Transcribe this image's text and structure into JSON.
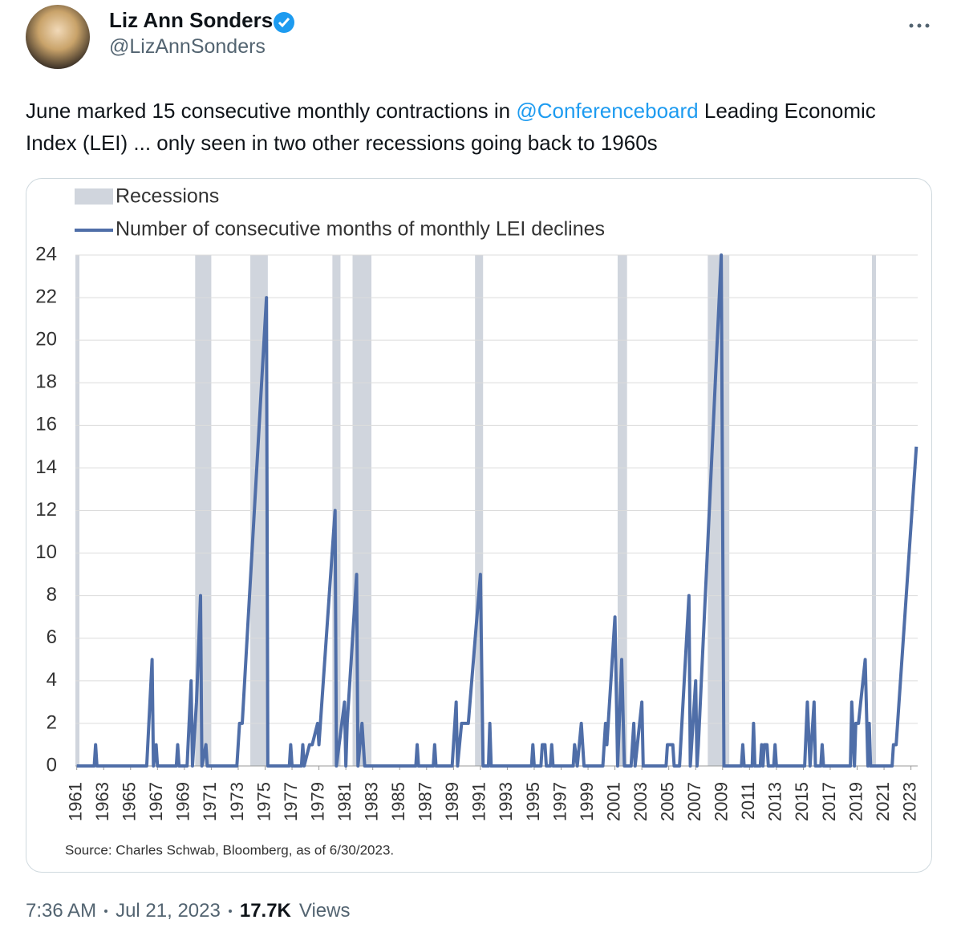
{
  "tweet": {
    "name": "Liz Ann Sonders",
    "handle": "@LizAnnSonders",
    "text": [
      "June marked 15 consecutive monthly contractions in ",
      "@Conferenceboard",
      " Leading Economic Index (LEI) ... only seen in two other recessions going back to 1960s"
    ],
    "time": "7:36 AM",
    "date": "Jul 21, 2023",
    "views_count": "17.7K",
    "views_label": "Views"
  },
  "chart_data": {
    "type": "line",
    "source": "Source: Charles Schwab, Bloomberg, as of 6/30/2023.",
    "xlim": [
      1960.9,
      2023.5
    ],
    "ylim": [
      0,
      24
    ],
    "yticks": [
      0,
      2,
      4,
      6,
      8,
      10,
      12,
      14,
      16,
      18,
      20,
      22,
      24
    ],
    "xticks": [
      1961,
      1963,
      1965,
      1967,
      1969,
      1971,
      1973,
      1975,
      1977,
      1979,
      1981,
      1983,
      1985,
      1987,
      1989,
      1991,
      1993,
      1995,
      1997,
      1999,
      2001,
      2003,
      2005,
      2007,
      2009,
      2011,
      2013,
      2015,
      2017,
      2019,
      2021,
      2023
    ],
    "grid": true,
    "recessions": {
      "name": "Recessions",
      "color": "#d0d5dd",
      "spans": [
        [
          1960.9,
          1961.2
        ],
        [
          1969.8,
          1971.0
        ],
        [
          1973.9,
          1975.2
        ],
        [
          1980.0,
          1980.6
        ],
        [
          1981.5,
          1982.9
        ],
        [
          1990.6,
          1991.2
        ],
        [
          2001.2,
          2001.9
        ],
        [
          2007.9,
          2009.5
        ],
        [
          2020.1,
          2020.4
        ]
      ]
    },
    "x": [
      1961.0,
      1962.3,
      1962.4,
      1962.5,
      1966.2,
      1966.6,
      1966.7,
      1966.9,
      1967.0,
      1968.4,
      1968.5,
      1968.6,
      1969.2,
      1969.5,
      1969.6,
      1969.9,
      1970.2,
      1970.3,
      1970.6,
      1970.7,
      1972.9,
      1973.1,
      1973.3,
      1975.1,
      1975.2,
      1976.8,
      1976.9,
      1977.0,
      1977.7,
      1977.8,
      1977.9,
      1978.3,
      1978.5,
      1978.9,
      1979.0,
      1980.2,
      1980.3,
      1980.9,
      1981.0,
      1981.1,
      1981.8,
      1981.9,
      1982.2,
      1982.4,
      1986.2,
      1986.3,
      1986.4,
      1987.5,
      1987.6,
      1987.7,
      1988.9,
      1989.2,
      1989.3,
      1989.6,
      1989.8,
      1990.1,
      1991.0,
      1991.2,
      1991.6,
      1991.7,
      1991.8,
      1994.8,
      1994.9,
      1995.0,
      1995.5,
      1995.6,
      1995.8,
      1995.9,
      1996.2,
      1996.3,
      1996.4,
      1997.9,
      1998.0,
      1998.2,
      1998.5,
      1998.7,
      2000.1,
      2000.3,
      2000.4,
      2001.0,
      2001.2,
      2001.5,
      2001.7,
      2002.2,
      2002.4,
      2002.5,
      2003.0,
      2003.1,
      2004.8,
      2004.9,
      2005.1,
      2005.3,
      2005.4,
      2005.8,
      2006.5,
      2006.6,
      2007.0,
      2007.1,
      2007.2,
      2008.9,
      2009.1,
      2010.4,
      2010.5,
      2010.6,
      2011.2,
      2011.3,
      2011.4,
      2011.8,
      2011.9,
      2012.0,
      2012.1,
      2012.3,
      2012.4,
      2012.8,
      2012.9,
      2013.0,
      2015.1,
      2015.3,
      2015.5,
      2015.8,
      2015.9,
      2016.3,
      2016.4,
      2016.5,
      2018.5,
      2018.6,
      2018.8,
      2018.9,
      2019.1,
      2019.6,
      2019.8,
      2019.9,
      2020.0,
      2021.6,
      2021.7,
      2021.9,
      2023.4
    ],
    "series": [
      {
        "name": "Number of consecutive months of monthly LEI declines",
        "color": "#4f6ea8",
        "values": [
          0,
          0,
          1,
          0,
          0,
          5,
          0,
          1,
          0,
          0,
          1,
          0,
          0,
          4,
          0,
          3,
          8,
          0,
          1,
          0,
          0,
          2,
          2,
          22,
          0,
          0,
          1,
          0,
          0,
          1,
          0,
          1,
          1,
          2,
          1,
          12,
          0,
          3,
          0,
          2,
          9,
          0,
          2,
          0,
          0,
          1,
          0,
          0,
          1,
          0,
          0,
          3,
          0,
          2,
          2,
          2,
          9,
          0,
          0,
          2,
          0,
          0,
          1,
          0,
          0,
          1,
          1,
          0,
          0,
          1,
          0,
          0,
          1,
          0,
          2,
          0,
          0,
          2,
          1,
          7,
          0,
          5,
          0,
          0,
          2,
          0,
          3,
          0,
          0,
          1,
          1,
          1,
          0,
          0,
          8,
          0,
          4,
          0,
          1,
          24,
          0,
          0,
          1,
          0,
          0,
          2,
          0,
          0,
          1,
          0,
          1,
          1,
          0,
          0,
          1,
          0,
          0,
          3,
          0,
          3,
          0,
          0,
          1,
          0,
          0,
          3,
          0,
          2,
          2,
          5,
          0,
          2,
          0,
          0,
          1,
          1,
          15
        ]
      }
    ]
  }
}
